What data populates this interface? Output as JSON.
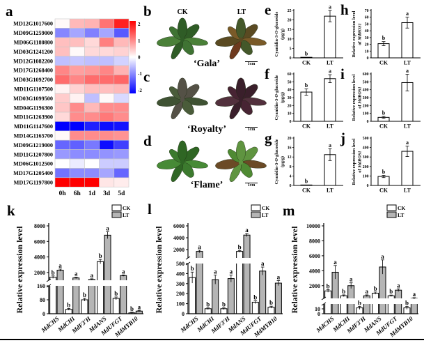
{
  "figure": {
    "panel_labels": {
      "a": "a",
      "b": "b",
      "c": "c",
      "d": "d",
      "e": "e",
      "f": "f",
      "g": "g",
      "h": "h",
      "i": "i",
      "j": "j",
      "k": "k",
      "l": "l",
      "m": "m"
    },
    "photo_col_headers": [
      "CK",
      "LT"
    ],
    "photos": [
      {
        "id": "b",
        "cultivar": "‘Gala’",
        "scale_label": "1cm",
        "ck_colors": [
          "#3f7333",
          "#2f5c26",
          "#4a8038"
        ],
        "lt_colors": [
          "#6e3a1e",
          "#5a4a22",
          "#7a5a28",
          "#44582a"
        ]
      },
      {
        "id": "c",
        "cultivar": "‘Royalty’",
        "scale_label": "1cm",
        "ck_colors": [
          "#4a5c3a",
          "#545146",
          "#3f5233"
        ],
        "lt_colors": [
          "#472433",
          "#3a1f2b",
          "#52303d"
        ]
      },
      {
        "id": "d",
        "cultivar": "‘Flame’",
        "scale_label": "1cm",
        "ck_colors": [
          "#3c7a2e",
          "#2f6624",
          "#478a36"
        ],
        "lt_colors": [
          "#4f8a33",
          "#5f9440",
          "#6b4a26"
        ]
      }
    ]
  },
  "chart_data": [
    {
      "id": "a",
      "type": "heatmap",
      "rows": [
        "MD12G1017600",
        "MD09G1259000",
        "MD06G1180800",
        "MD03G1241200",
        "MD12G1082200",
        "MD17G1268400",
        "MD03G1092700",
        "MD11G1107500",
        "MD03G1099500",
        "MD04G1196300",
        "MD11G1263900",
        "MD11G1147600",
        "MD14G1165700",
        "MD09G1219000",
        "MD11G1207800",
        "MD06G1012500",
        "MD17G1205400",
        "MD17G1197800"
      ],
      "columns": [
        "0h",
        "6h",
        "1d",
        "3d",
        "5d"
      ],
      "values": [
        [
          0.05,
          0.55,
          0.6,
          1.1,
          1.75
        ],
        [
          -0.95,
          -0.7,
          -1.0,
          -0.7,
          -1.3
        ],
        [
          0.5,
          0.5,
          0.3,
          1.0,
          0.55
        ],
        [
          0.5,
          0.05,
          0.3,
          0.3,
          0.35
        ],
        [
          -0.5,
          -0.45,
          -0.5,
          -0.5,
          -0.35
        ],
        [
          0.95,
          0.75,
          0.8,
          0.95,
          0.6
        ],
        [
          1.15,
          0.95,
          1.15,
          1.15,
          1.2
        ],
        [
          0.1,
          0.35,
          0.5,
          0.5,
          0.55
        ],
        [
          0.4,
          0.1,
          -0.5,
          0.05,
          -0.3
        ],
        [
          0.45,
          0.9,
          0.55,
          0.9,
          0.9
        ],
        [
          0.3,
          0.9,
          0.9,
          1.05,
          0.9
        ],
        [
          -2.0,
          -2.0,
          -1.75,
          -1.9,
          -1.85
        ],
        [
          0.05,
          0.9,
          0.9,
          0.9,
          0.85
        ],
        [
          -1.2,
          -1.25,
          -1.05,
          -1.9,
          -1.5
        ],
        [
          -0.8,
          -0.9,
          -0.9,
          -0.85,
          -0.8
        ],
        [
          0.0,
          -0.15,
          0.0,
          -0.4,
          -0.4
        ],
        [
          -1.1,
          -0.9,
          -0.9,
          -0.7,
          -1.2
        ],
        [
          2.0,
          2.0,
          2.0,
          0.2,
          0.15
        ]
      ],
      "colorbar_ticks": [
        2,
        1,
        0,
        -1,
        -2
      ],
      "scale_range": [
        -2.2,
        2.2
      ],
      "colors": {
        "high": "#ff0000",
        "mid": "#ffffff",
        "low": "#0000ff"
      }
    },
    {
      "id": "e",
      "type": "bar",
      "categories": [
        "CK",
        "LT"
      ],
      "values": [
        0.3,
        22
      ],
      "errors": [
        0.05,
        3
      ],
      "letters": [
        "b",
        "a"
      ],
      "ylabel_lines": [
        "Cyanidin-3-|O|-glucoside",
        "(μg/g)"
      ],
      "ylim": [
        0,
        25
      ],
      "yticks": [
        0,
        5,
        10,
        15,
        20,
        25
      ],
      "bar_fill": "#ffffff"
    },
    {
      "id": "f",
      "type": "bar",
      "categories": [
        "CK",
        "LT"
      ],
      "values": [
        37,
        54
      ],
      "errors": [
        4,
        5
      ],
      "letters": [
        "b",
        "a"
      ],
      "ylabel_lines": [
        "Cyanidin-3-|O|-glucoside",
        "(μg/g)"
      ],
      "ylim": [
        0,
        60
      ],
      "yticks": [
        0,
        10,
        20,
        30,
        40,
        50,
        60
      ],
      "bar_fill": "#ffffff"
    },
    {
      "id": "g",
      "type": "bar",
      "categories": [
        "CK",
        "LT"
      ],
      "values": [
        0.2,
        13
      ],
      "errors": [
        0.05,
        2.5
      ],
      "letters": [
        "b",
        "a"
      ],
      "ylabel_lines": [
        "Cyanidin-3-|O|-glucoside",
        "(μg/g)"
      ],
      "ylim": [
        0,
        20
      ],
      "yticks": [
        0,
        4,
        8,
        12,
        16,
        20
      ],
      "bar_fill": "#ffffff"
    },
    {
      "id": "h",
      "type": "bar",
      "categories": [
        "CK",
        "LT"
      ],
      "values": [
        21,
        52
      ],
      "errors": [
        3,
        8
      ],
      "letters": [
        "b",
        "a"
      ],
      "ylabel_lines": [
        "Relative expression level",
        "of |MdROS1|"
      ],
      "ylim": [
        0,
        70
      ],
      "yticks": [
        0,
        10,
        20,
        30,
        40,
        50,
        60,
        70
      ],
      "bar_fill": "#ffffff"
    },
    {
      "id": "i",
      "type": "bar",
      "categories": [
        "CK",
        "LT"
      ],
      "values": [
        50,
        490
      ],
      "errors": [
        12,
        105
      ],
      "letters": [
        "b",
        "a"
      ],
      "ylabel_lines": [
        "Relative expression level",
        "of |MdROS1|"
      ],
      "ylim": [
        0,
        600
      ],
      "yticks": [
        0,
        100,
        200,
        300,
        400,
        500,
        600
      ],
      "bar_fill": "#ffffff"
    },
    {
      "id": "j",
      "type": "bar",
      "categories": [
        "CK",
        "LT"
      ],
      "values": [
        95,
        360
      ],
      "errors": [
        12,
        55
      ],
      "letters": [
        "b",
        "a"
      ],
      "ylabel_lines": [
        "Relative expression level",
        "of |MdROS1|"
      ],
      "ylim": [
        0,
        500
      ],
      "yticks": [
        0,
        100,
        200,
        300,
        400,
        500
      ],
      "bar_fill": "#ffffff"
    },
    {
      "id": "k",
      "type": "grouped-bar-broken-axis",
      "ylabel": "Relative expression level",
      "categories": [
        "MdCHS",
        "MdCHI",
        "MdF3'H",
        "MdANS",
        "MdUFGT",
        "MdMYB10"
      ],
      "legend": [
        "CK",
        "LT"
      ],
      "lower_axis": {
        "max": 160,
        "ticks": [
          0,
          80,
          160
        ]
      },
      "upper_axis": {
        "min": 1000,
        "max": 8000,
        "ticks": [
          2000,
          4000,
          6000,
          8000
        ]
      },
      "series": [
        {
          "name": "CK",
          "fill": "#ffffff",
          "values": [
            1400,
            25,
            80,
            3400,
            88,
            5
          ],
          "errors": [
            160,
            5,
            8,
            280,
            8,
            2
          ],
          "letters": [
            "b",
            "b",
            "b",
            "b",
            "b",
            "b"
          ]
        },
        {
          "name": "LT",
          "fill": "#b5b5b5",
          "values": [
            2300,
            1300,
            1100,
            6800,
            1600,
            15
          ],
          "errors": [
            140,
            70,
            60,
            450,
            70,
            4
          ],
          "letters": [
            "a",
            "a",
            "a",
            "a",
            "a",
            "a"
          ]
        }
      ]
    },
    {
      "id": "l",
      "type": "grouped-bar-broken-axis",
      "ylabel": "Relative expression level",
      "categories": [
        "MdCHS",
        "MdCHI",
        "MdF3'H",
        "MdANS",
        "MdUFGT",
        "MdMYB10"
      ],
      "legend": [
        "CK",
        "LT"
      ],
      "lower_axis": {
        "max": 500,
        "ticks": [
          0,
          100,
          200,
          300,
          400,
          500
        ]
      },
      "upper_axis": {
        "min": 600,
        "max": 6000,
        "ticks": [
          2000,
          4000,
          6000
        ]
      },
      "series": [
        {
          "name": "CK",
          "fill": "#ffffff",
          "values": [
            360,
            50,
            50,
            1700,
            115,
            65
          ],
          "errors": [
            55,
            8,
            8,
            130,
            15,
            10
          ],
          "letters": [
            "b",
            "b",
            "b",
            "b",
            "b",
            "b"
          ]
        },
        {
          "name": "LT",
          "fill": "#b5b5b5",
          "values": [
            1700,
            340,
            350,
            4450,
            425,
            305
          ],
          "errors": [
            210,
            45,
            35,
            260,
            40,
            25
          ],
          "letters": [
            "a",
            "a",
            "a",
            "a",
            "a",
            "a"
          ]
        }
      ]
    },
    {
      "id": "m",
      "type": "grouped-bar-broken-axis",
      "ylabel": "Relative expression level",
      "categories": [
        "MdCHS",
        "MdCHI",
        "MdF3'H",
        "MdANS",
        "MdUFGT",
        "MdMYB10"
      ],
      "legend": [
        "CK",
        "LT"
      ],
      "lower_axis": {
        "max": 20,
        "ticks": [
          0,
          10
        ]
      },
      "upper_axis": {
        "min": 300,
        "max": 10000,
        "ticks": [
          2000,
          4000,
          6000,
          8000,
          10000
        ]
      },
      "series": [
        {
          "name": "CK",
          "fill": "#ffffff",
          "values": [
            1300,
            650,
            12,
            1000,
            650,
            12
          ],
          "errors": [
            180,
            120,
            3,
            150,
            100,
            3
          ],
          "letters": [
            "b",
            "b",
            "b",
            "b",
            "b",
            "b"
          ]
        },
        {
          "name": "LT",
          "fill": "#b5b5b5",
          "values": [
            3800,
            2000,
            650,
            4500,
            1400,
            300
          ],
          "errors": [
            900,
            380,
            120,
            950,
            180,
            60
          ],
          "letters": [
            "a",
            "a",
            "a",
            "a",
            "a",
            "a"
          ]
        }
      ]
    }
  ]
}
